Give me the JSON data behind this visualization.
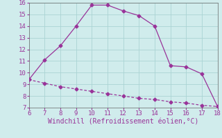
{
  "xlabel": "Windchill (Refroidissement éolien,°C)",
  "line1_x": [
    6,
    7,
    8,
    9,
    10,
    11,
    12,
    13,
    14,
    15,
    16,
    17,
    18
  ],
  "line1_y": [
    9.4,
    11.1,
    12.3,
    14.0,
    15.8,
    15.8,
    15.3,
    14.9,
    14.0,
    10.6,
    10.5,
    9.9,
    7.1
  ],
  "line2_x": [
    6,
    7,
    8,
    9,
    10,
    11,
    12,
    13,
    14,
    15,
    16,
    17,
    18
  ],
  "line2_y": [
    9.4,
    9.1,
    8.8,
    8.6,
    8.4,
    8.2,
    8.0,
    7.8,
    7.7,
    7.5,
    7.4,
    7.2,
    7.1
  ],
  "line_color": "#993399",
  "bg_color": "#d0ecec",
  "grid_color": "#aad4d4",
  "xlim": [
    6,
    18
  ],
  "ylim": [
    7,
    16
  ],
  "xticks": [
    6,
    7,
    8,
    9,
    10,
    11,
    12,
    13,
    14,
    15,
    16,
    17,
    18
  ],
  "yticks": [
    7,
    8,
    9,
    10,
    11,
    12,
    13,
    14,
    15,
    16
  ],
  "tick_fontsize": 6.5,
  "xlabel_fontsize": 7,
  "marker": "D",
  "marker_size": 2.5
}
